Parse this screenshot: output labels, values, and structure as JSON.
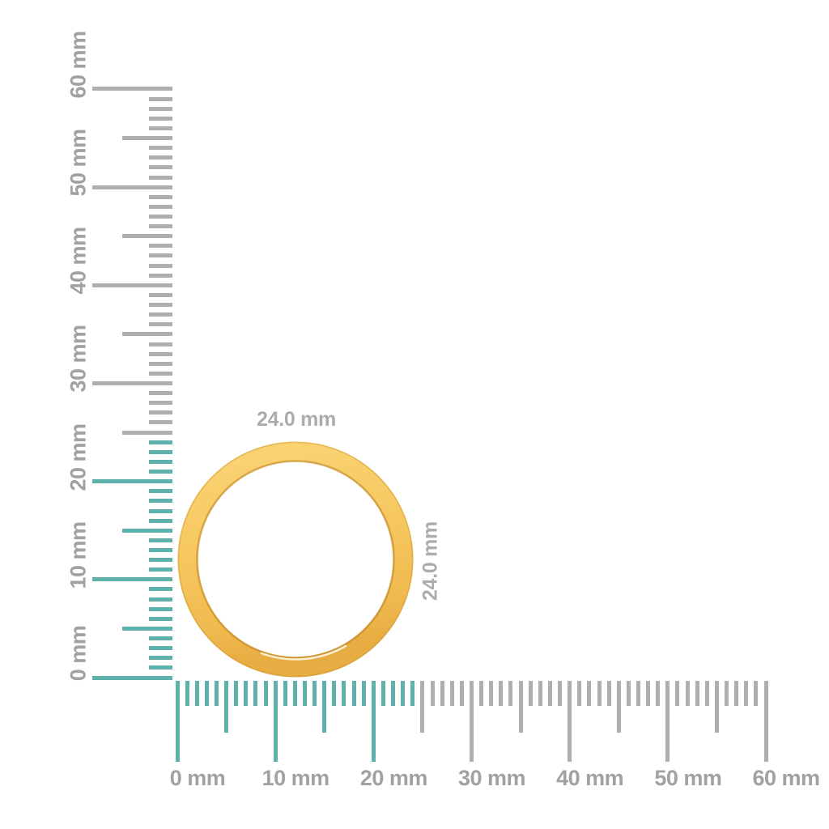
{
  "page": {
    "background": "#FFFFFF"
  },
  "colors": {
    "highlight_teal": "#5FB2AC",
    "tick_gray": "#AFAFAF",
    "ruler_label_gray": "#A1A1A1",
    "dimension_label_gray": "#ACACAC"
  },
  "rulers": {
    "unit": "mm",
    "max_mm": 60,
    "minor_step_mm": 1,
    "medium_step_mm": 5,
    "label_step_mm": 10,
    "highlight_until_mm": 24,
    "vertical": {
      "labels": [
        "0 mm",
        "10 mm",
        "20 mm",
        "30 mm",
        "40 mm",
        "50 mm",
        "60 mm"
      ]
    },
    "horizontal": {
      "labels": [
        "0 mm",
        "10 mm",
        "20 mm",
        "30 mm",
        "40 mm",
        "50 mm",
        "60 mm"
      ]
    }
  },
  "ring": {
    "width_label": "24.0 mm",
    "height_label": "24.0 mm",
    "colors": {
      "gold_light": "#FAD475",
      "gold_main": "#F7C860",
      "gold_dark": "#E8AD42",
      "inner_edge": "#B57E22",
      "outer_edge": "#C99937",
      "diamond_specks": "#C9C9C9"
    }
  }
}
